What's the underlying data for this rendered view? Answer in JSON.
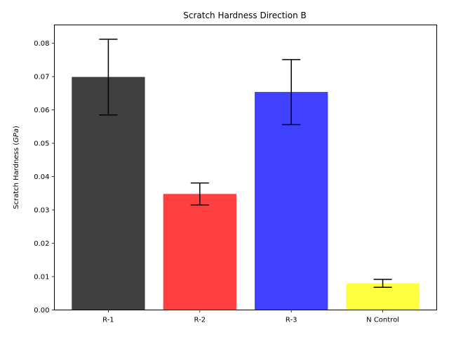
{
  "chart_data": {
    "type": "bar",
    "title": "Scratch Hardness Direction B",
    "xlabel": "",
    "ylabel": {
      "prefix": "Scratch Hardness (",
      "unit": "GPa",
      "suffix": ")"
    },
    "ylim": [
      0,
      0.0855
    ],
    "yticks": [
      "0.00",
      "0.01",
      "0.02",
      "0.03",
      "0.04",
      "0.05",
      "0.06",
      "0.07",
      "0.08"
    ],
    "categories": [
      "R-1",
      "R-2",
      "R-3",
      "N Control"
    ],
    "values": [
      0.0699,
      0.0348,
      0.0654,
      0.008
    ],
    "error_low": [
      0.0585,
      0.0315,
      0.0556,
      0.0068
    ],
    "error_high": [
      0.0812,
      0.0381,
      0.0751,
      0.0092
    ],
    "colors": [
      "#404040",
      "#ff4040",
      "#4040ff",
      "#ffff40"
    ],
    "grid": false,
    "legend": "none"
  }
}
